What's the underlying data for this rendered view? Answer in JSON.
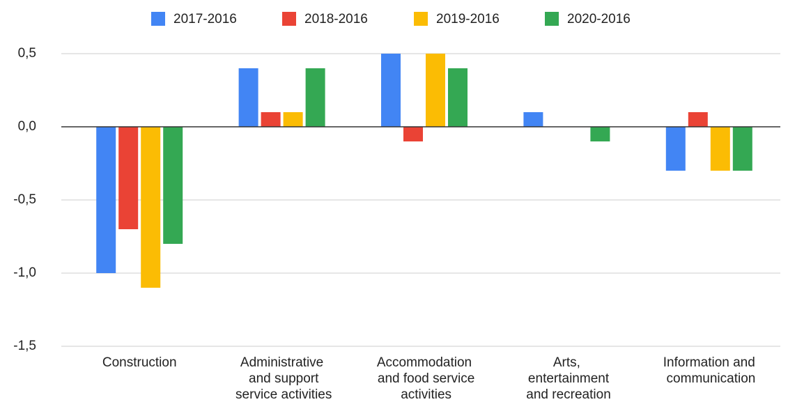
{
  "chart_data": {
    "type": "bar",
    "categories": [
      "Construction",
      "Administrative\nand support\nservice activities",
      "Accommodation\nand food service\nactivities",
      "Arts,\nentertainment\nand recreation",
      "Information and\ncommunication"
    ],
    "series": [
      {
        "name": "2017-2016",
        "color": "#4285f4",
        "values": [
          -1.0,
          0.4,
          0.5,
          0.1,
          -0.3
        ]
      },
      {
        "name": "2018-2016",
        "color": "#ea4335",
        "values": [
          -0.7,
          0.1,
          -0.1,
          0,
          0.1
        ]
      },
      {
        "name": "2019-2016",
        "color": "#fbbc04",
        "values": [
          -1.1,
          0.1,
          0.5,
          0,
          -0.3
        ]
      },
      {
        "name": "2020-2016",
        "color": "#34a853",
        "values": [
          -0.8,
          0.4,
          0.4,
          -0.1,
          -0.3
        ]
      }
    ],
    "ylim": [
      -1.5,
      0.5
    ],
    "yticks": [
      {
        "value": -1.5,
        "label": "-1,5"
      },
      {
        "value": -1.0,
        "label": "-1,0"
      },
      {
        "value": -0.5,
        "label": "-0,5"
      },
      {
        "value": 0,
        "label": "0,0"
      },
      {
        "value": 0.5,
        "label": "0,5"
      }
    ],
    "grid": true,
    "legend": "top"
  }
}
